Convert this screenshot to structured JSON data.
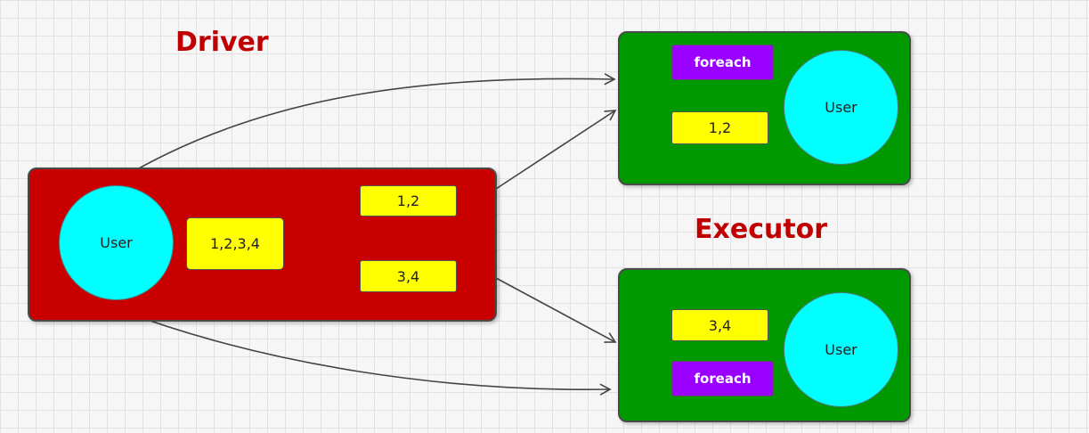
{
  "titles": {
    "driver": "Driver",
    "executor": "Executor"
  },
  "driver": {
    "user": "User",
    "data": "1,2,3,4",
    "split_a": "1,2",
    "split_b": "3,4"
  },
  "executor_top": {
    "op": "foreach",
    "data": "1,2",
    "user": "User"
  },
  "executor_bottom": {
    "op": "foreach",
    "data": "3,4",
    "user": "User"
  },
  "colors": {
    "driver_bg": "#c80000",
    "executor_bg": "#009a00",
    "data_tag": "#ffff00",
    "op_tag": "#9900ff",
    "user": "#00ffff",
    "title": "#c00000",
    "arrow": "#444444"
  }
}
